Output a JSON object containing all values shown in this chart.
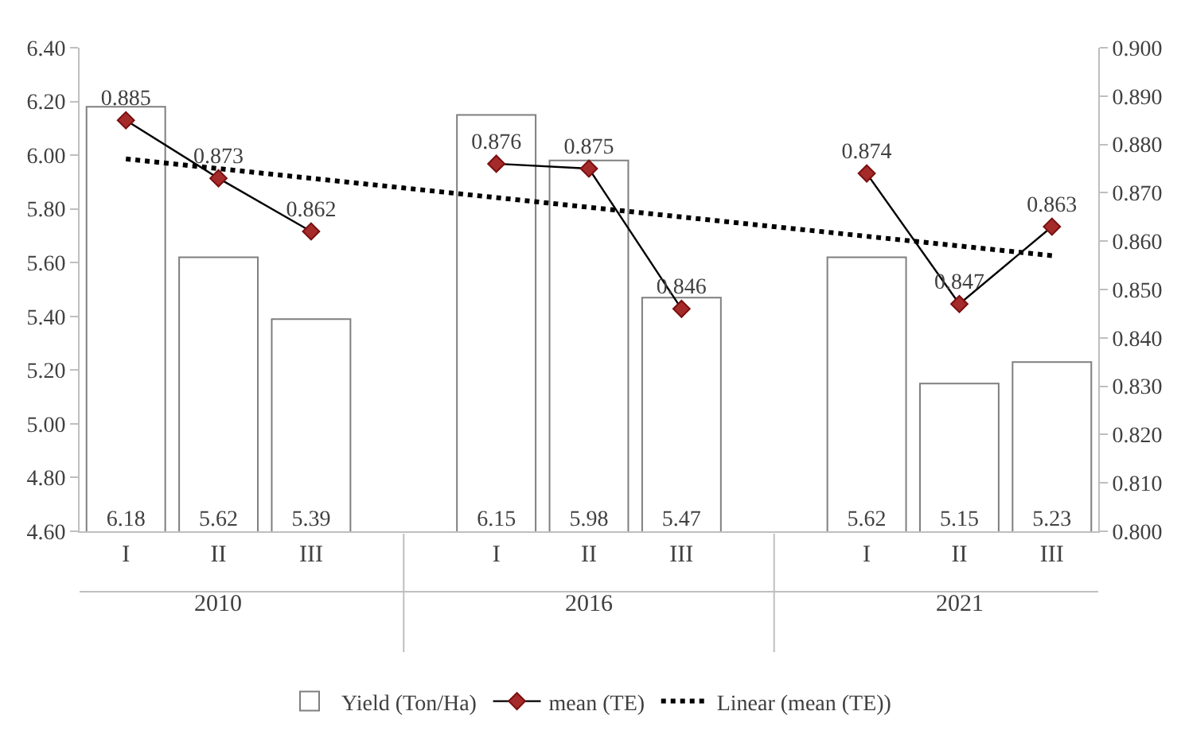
{
  "chart_data": {
    "type": "bar",
    "categories": [
      "I",
      "II",
      "III",
      null,
      "I",
      "II",
      "III",
      null,
      "I",
      "II",
      "III"
    ],
    "annotations": [
      "2010",
      "2016",
      "2021"
    ],
    "series": [
      {
        "name": "Yield (Ton/Ha)",
        "value_labels": [
          "6.18",
          "5.62",
          "5.39",
          null,
          "6.15",
          "5.98",
          "5.47",
          null,
          "5.62",
          "5.15",
          "5.23"
        ],
        "color": "#ffffff",
        "values": [
          6.18,
          5.62,
          5.39,
          null,
          6.15,
          5.98,
          5.47,
          null,
          5.62,
          5.15,
          5.23
        ]
      },
      {
        "name": "mean (TE)",
        "type": "line",
        "axis": "y2",
        "color": "#000000",
        "marker": "diamond",
        "value_labels": [
          "0.885",
          "0.873",
          "0.862",
          null,
          "0.876",
          "0.875",
          "0.846",
          null,
          "0.874",
          "0.847",
          "0.863"
        ],
        "values": [
          0.885,
          0.873,
          0.862,
          null,
          0.876,
          0.875,
          0.846,
          null,
          0.874,
          0.847,
          0.863
        ]
      },
      {
        "name": "Linear (mean (TE))",
        "type": "line",
        "axis": "y2",
        "color": "#000000",
        "line_style": "dotted",
        "marker": "none",
        "values": [
          0.877,
          null,
          null,
          null,
          null,
          null,
          null,
          null,
          null,
          null,
          0.857
        ]
      }
    ],
    "legend": "bottom",
    "ylim": [
      4.6,
      6.4
    ],
    "yticks": [
      {
        "value": 4.6,
        "label": "4.60"
      },
      {
        "value": 4.8,
        "label": "4.80"
      },
      {
        "value": 5.0,
        "label": "5.00"
      },
      {
        "value": 5.2,
        "label": "5.20"
      },
      {
        "value": 5.4,
        "label": "5.40"
      },
      {
        "value": 5.6,
        "label": "5.60"
      },
      {
        "value": 5.8,
        "label": "5.80"
      },
      {
        "value": 6.0,
        "label": "6.00"
      },
      {
        "value": 6.2,
        "label": "6.20"
      },
      {
        "value": 6.4,
        "label": "6.40"
      }
    ],
    "y2lim": [
      0.8,
      0.9
    ],
    "y2ticks": [
      {
        "value": 0.8,
        "label": "0.800"
      },
      {
        "value": 0.81,
        "label": "0.810"
      },
      {
        "value": 0.82,
        "label": "0.820"
      },
      {
        "value": 0.83,
        "label": "0.830"
      },
      {
        "value": 0.84,
        "label": "0.840"
      },
      {
        "value": 0.85,
        "label": "0.850"
      },
      {
        "value": 0.86,
        "label": "0.860"
      },
      {
        "value": 0.87,
        "label": "0.870"
      },
      {
        "value": 0.88,
        "label": "0.880"
      },
      {
        "value": 0.89,
        "label": "0.890"
      },
      {
        "value": 0.9,
        "label": "0.900"
      }
    ]
  }
}
